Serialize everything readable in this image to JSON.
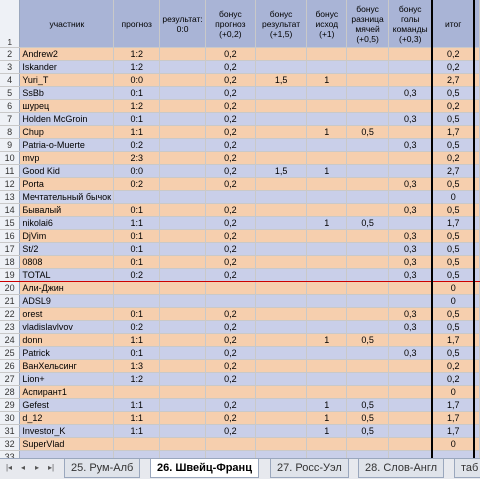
{
  "headers": [
    "участник",
    "прогноз",
    "результат: 0:0",
    "бонус прогноз (+0,2)",
    "бонус результат (+1,5)",
    "бонус исход (+1)",
    "бонус разница мячей (+0,5)",
    "бонус голы команды (+0,3)",
    "итог"
  ],
  "rows": [
    {
      "n": "2",
      "name": "Andrew2",
      "p": "1:2",
      "b02": "0,2",
      "b15": "",
      "b1": "",
      "b05": "",
      "b03": "",
      "t": "0,2"
    },
    {
      "n": "3",
      "name": "Iskander",
      "p": "1:2",
      "b02": "0,2",
      "b15": "",
      "b1": "",
      "b05": "",
      "b03": "",
      "t": "0,2"
    },
    {
      "n": "4",
      "name": "Yuri_T",
      "p": "0:0",
      "b02": "0,2",
      "b15": "1,5",
      "b1": "1",
      "b05": "",
      "b03": "",
      "t": "2,7"
    },
    {
      "n": "5",
      "name": "SsBb",
      "p": "0:1",
      "b02": "0,2",
      "b15": "",
      "b1": "",
      "b05": "",
      "b03": "0,3",
      "t": "0,5"
    },
    {
      "n": "6",
      "name": "шурец",
      "p": "1:2",
      "b02": "0,2",
      "b15": "",
      "b1": "",
      "b05": "",
      "b03": "",
      "t": "0,2"
    },
    {
      "n": "7",
      "name": "Holden McGroin",
      "p": "0:1",
      "b02": "0,2",
      "b15": "",
      "b1": "",
      "b05": "",
      "b03": "0,3",
      "t": "0,5"
    },
    {
      "n": "8",
      "name": "Chup",
      "p": "1:1",
      "b02": "0,2",
      "b15": "",
      "b1": "1",
      "b05": "0,5",
      "b03": "",
      "t": "1,7"
    },
    {
      "n": "9",
      "name": "Patria-o-Muerte",
      "p": "0:2",
      "b02": "0,2",
      "b15": "",
      "b1": "",
      "b05": "",
      "b03": "0,3",
      "t": "0,5"
    },
    {
      "n": "10",
      "name": "mvp",
      "p": "2:3",
      "b02": "0,2",
      "b15": "",
      "b1": "",
      "b05": "",
      "b03": "",
      "t": "0,2"
    },
    {
      "n": "11",
      "name": "Good Kid",
      "p": "0:0",
      "b02": "0,2",
      "b15": "1,5",
      "b1": "1",
      "b05": "",
      "b03": "",
      "t": "2,7"
    },
    {
      "n": "12",
      "name": "Porta",
      "p": "0:2",
      "b02": "0,2",
      "b15": "",
      "b1": "",
      "b05": "",
      "b03": "0,3",
      "t": "0,5"
    },
    {
      "n": "13",
      "name": "Мечтательный бычок",
      "p": "",
      "b02": "",
      "b15": "",
      "b1": "",
      "b05": "",
      "b03": "",
      "t": "0"
    },
    {
      "n": "14",
      "name": "Бывалый",
      "p": "0:1",
      "b02": "0,2",
      "b15": "",
      "b1": "",
      "b05": "",
      "b03": "0,3",
      "t": "0,5"
    },
    {
      "n": "15",
      "name": "nikolai6",
      "p": "1:1",
      "b02": "0,2",
      "b15": "",
      "b1": "1",
      "b05": "0,5",
      "b03": "",
      "t": "1,7"
    },
    {
      "n": "16",
      "name": "DjVim",
      "p": "0:1",
      "b02": "0,2",
      "b15": "",
      "b1": "",
      "b05": "",
      "b03": "0,3",
      "t": "0,5"
    },
    {
      "n": "17",
      "name": "St/2",
      "p": "0:1",
      "b02": "0,2",
      "b15": "",
      "b1": "",
      "b05": "",
      "b03": "0,3",
      "t": "0,5"
    },
    {
      "n": "18",
      "name": "0808",
      "p": "0:1",
      "b02": "0,2",
      "b15": "",
      "b1": "",
      "b05": "",
      "b03": "0,3",
      "t": "0,5"
    },
    {
      "n": "19",
      "name": "TOTAL",
      "p": "0:2",
      "b02": "0,2",
      "b15": "",
      "b1": "",
      "b05": "",
      "b03": "0,3",
      "t": "0,5"
    },
    {
      "n": "20",
      "name": "Али-Джин",
      "p": "",
      "b02": "",
      "b15": "",
      "b1": "",
      "b05": "",
      "b03": "",
      "t": "0"
    },
    {
      "n": "21",
      "name": "ADSL9",
      "p": "",
      "b02": "",
      "b15": "",
      "b1": "",
      "b05": "",
      "b03": "",
      "t": "0"
    },
    {
      "n": "22",
      "name": "orest",
      "p": "0:1",
      "b02": "0,2",
      "b15": "",
      "b1": "",
      "b05": "",
      "b03": "0,3",
      "t": "0,5"
    },
    {
      "n": "23",
      "name": "vladislavlvov",
      "p": "0:2",
      "b02": "0,2",
      "b15": "",
      "b1": "",
      "b05": "",
      "b03": "0,3",
      "t": "0,5"
    },
    {
      "n": "24",
      "name": "donn",
      "p": "1:1",
      "b02": "0,2",
      "b15": "",
      "b1": "1",
      "b05": "0,5",
      "b03": "",
      "t": "1,7"
    },
    {
      "n": "25",
      "name": "Patrick",
      "p": "0:1",
      "b02": "0,2",
      "b15": "",
      "b1": "",
      "b05": "",
      "b03": "0,3",
      "t": "0,5"
    },
    {
      "n": "26",
      "name": "ВанХельсинг",
      "p": "1:3",
      "b02": "0,2",
      "b15": "",
      "b1": "",
      "b05": "",
      "b03": "",
      "t": "0,2"
    },
    {
      "n": "27",
      "name": "Lion+",
      "p": "1:2",
      "b02": "0,2",
      "b15": "",
      "b1": "",
      "b05": "",
      "b03": "",
      "t": "0,2"
    },
    {
      "n": "28",
      "name": "Аспирант1",
      "p": "",
      "b02": "",
      "b15": "",
      "b1": "",
      "b05": "",
      "b03": "",
      "t": "0"
    },
    {
      "n": "29",
      "name": "Gefest",
      "p": "1:1",
      "b02": "0,2",
      "b15": "",
      "b1": "1",
      "b05": "0,5",
      "b03": "",
      "t": "1,7"
    },
    {
      "n": "30",
      "name": "d_12",
      "p": "1:1",
      "b02": "0,2",
      "b15": "",
      "b1": "1",
      "b05": "0,5",
      "b03": "",
      "t": "1,7"
    },
    {
      "n": "31",
      "name": "Investor_K",
      "p": "1:1",
      "b02": "0,2",
      "b15": "",
      "b1": "1",
      "b05": "0,5",
      "b03": "",
      "t": "1,7"
    },
    {
      "n": "32",
      "name": "SuperVlad",
      "p": "",
      "b02": "",
      "b15": "",
      "b1": "",
      "b05": "",
      "b03": "",
      "t": "0"
    },
    {
      "n": "33",
      "name": "",
      "p": "",
      "b02": "",
      "b15": "",
      "b1": "",
      "b05": "",
      "b03": "",
      "t": ""
    }
  ],
  "tabs": [
    "25. Рум-Алб",
    "26. Швейц-Франц",
    "27. Росс-Уэл",
    "28. Слов-Англ",
    "таб"
  ],
  "active_tab": 1,
  "nav": [
    "|◂",
    "◂",
    "▸",
    "▸|"
  ]
}
